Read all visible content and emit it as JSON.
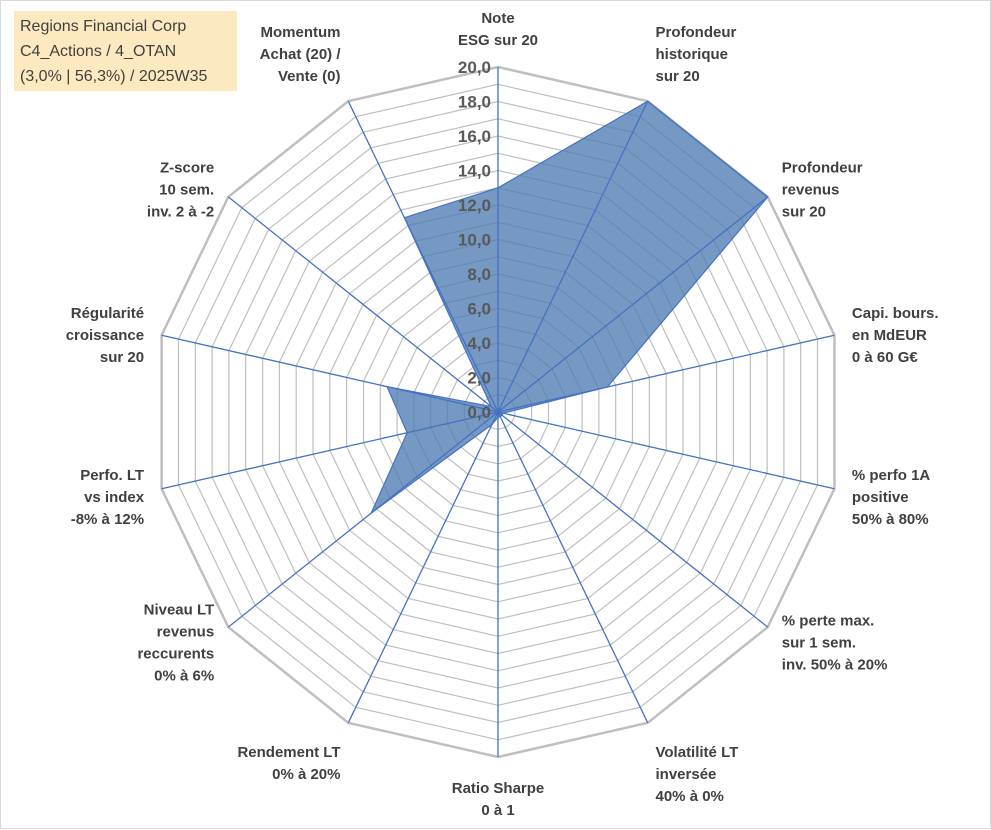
{
  "title_box": {
    "line1": "Regions Financial Corp",
    "line2": "C4_Actions / 4_OTAN",
    "line3": "(3,0% | 56,3%) / 2025W35"
  },
  "chart_data": {
    "type": "radar",
    "rmax": 20,
    "ticks": [
      "0,0",
      "2,0",
      "4,0",
      "6,0",
      "8,0",
      "10,0",
      "12,0",
      "14,0",
      "16,0",
      "18,0",
      "20,0"
    ],
    "grid_rings": 20,
    "categories": [
      [
        "Note",
        "ESG sur 20"
      ],
      [
        "Profondeur",
        "historique",
        "sur 20"
      ],
      [
        "Profondeur",
        "revenus",
        "sur 20"
      ],
      [
        "Capi. bours.",
        "en MdEUR",
        "0 à 60 G€"
      ],
      [
        "% perfo 1A",
        "positive",
        "50% à 80%"
      ],
      [
        "% perte max.",
        "sur 1 sem.",
        "inv. 50% à 20%"
      ],
      [
        "Volatilité LT",
        "inversée",
        "40% à 0%"
      ],
      [
        "Ratio Sharpe",
        "0 à 1"
      ],
      [
        "Rendement LT",
        "0% à 20%"
      ],
      [
        "Niveau LT",
        "revenus",
        "reccurents",
        "0% à 6%"
      ],
      [
        "Perfo. LT",
        "vs index",
        "-8% à 12%"
      ],
      [
        "Régularité",
        "croissance",
        "sur 20"
      ],
      [
        "Z-score",
        "10 sem.",
        "inv. 2 à -2"
      ],
      [
        "Momentum",
        "Achat (20) /",
        "Vente (0)"
      ]
    ],
    "values": [
      13.0,
      20.0,
      20.0,
      6.5,
      0.3,
      0.3,
      0.3,
      0.3,
      0.8,
      9.4,
      5.4,
      6.6,
      0.5,
      12.5
    ],
    "colors": {
      "fill": "#4f7cb3",
      "stroke": "#4472c4",
      "grid": "#bfbfbf"
    }
  }
}
